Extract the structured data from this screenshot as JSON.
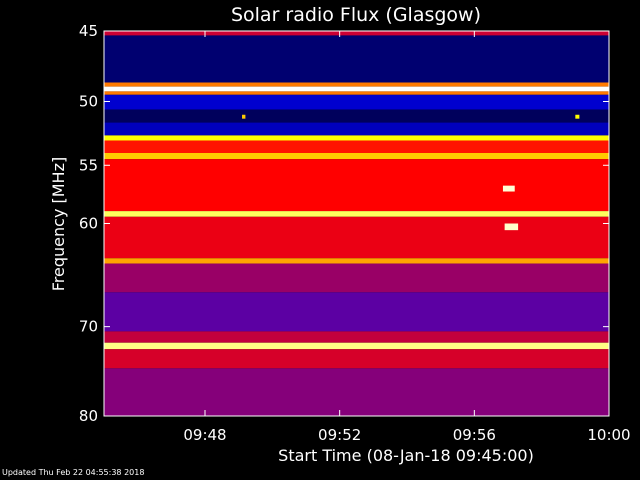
{
  "chart_data": {
    "type": "heatmap",
    "title": "Solar radio Flux (Glasgow)",
    "xlabel": "Start Time (08-Jan-18 09:45:00)",
    "ylabel": "Frequency [MHz]",
    "x_range_minutes": [
      0,
      15
    ],
    "x_ticks": [
      {
        "label": "09:48",
        "minute": 3
      },
      {
        "label": "09:52",
        "minute": 7
      },
      {
        "label": "09:56",
        "minute": 11
      },
      {
        "label": "10:00",
        "minute": 15
      }
    ],
    "ylim": [
      45,
      80
    ],
    "y_scale": "log",
    "y_direction": "inverted",
    "y_ticks": [
      45,
      50,
      55,
      60,
      70,
      80
    ],
    "colormap": [
      "#000010",
      "#0000ff",
      "#ff0000",
      "#ffff00",
      "#ffffff"
    ],
    "bands": [
      {
        "from": 45.0,
        "to": 45.3,
        "level": 0.45
      },
      {
        "from": 45.3,
        "to": 48.6,
        "level": 0.1
      },
      {
        "from": 48.6,
        "to": 48.9,
        "level": 0.62
      },
      {
        "from": 48.9,
        "to": 49.25,
        "level": 1.0
      },
      {
        "from": 49.25,
        "to": 49.5,
        "level": 0.62
      },
      {
        "from": 49.5,
        "to": 50.6,
        "level": 0.2
      },
      {
        "from": 50.6,
        "to": 51.6,
        "level": 0.08
      },
      {
        "from": 51.6,
        "to": 52.6,
        "level": 0.18
      },
      {
        "from": 52.6,
        "to": 53.0,
        "level": 0.75
      },
      {
        "from": 53.0,
        "to": 54.0,
        "level": 0.52
      },
      {
        "from": 54.0,
        "to": 54.5,
        "level": 0.7
      },
      {
        "from": 54.5,
        "to": 58.9,
        "level": 0.5
      },
      {
        "from": 58.9,
        "to": 59.4,
        "level": 0.84
      },
      {
        "from": 59.4,
        "to": 63.2,
        "level": 0.48
      },
      {
        "from": 63.2,
        "to": 63.7,
        "level": 0.66
      },
      {
        "from": 63.7,
        "to": 66.5,
        "level": 0.4
      },
      {
        "from": 66.5,
        "to": 70.5,
        "level": 0.34
      },
      {
        "from": 70.5,
        "to": 71.7,
        "level": 0.44
      },
      {
        "from": 71.7,
        "to": 72.4,
        "level": 0.88
      },
      {
        "from": 72.4,
        "to": 74.5,
        "level": 0.46
      },
      {
        "from": 74.5,
        "to": 80.0,
        "level": 0.38
      }
    ],
    "features": [
      {
        "name": "burst",
        "minute_from": 11.85,
        "minute_to": 12.2,
        "mhz_from": 56.7,
        "mhz_to": 57.2,
        "level": 0.96
      },
      {
        "name": "burst",
        "minute_from": 11.9,
        "minute_to": 12.3,
        "mhz_from": 60.0,
        "mhz_to": 60.6,
        "level": 0.95
      },
      {
        "name": "spot",
        "minute_from": 4.1,
        "minute_to": 4.2,
        "mhz_from": 51.0,
        "mhz_to": 51.3,
        "level": 0.7
      },
      {
        "name": "spot",
        "minute_from": 14.0,
        "minute_to": 14.12,
        "mhz_from": 51.0,
        "mhz_to": 51.3,
        "level": 0.75
      }
    ]
  },
  "footer": {
    "updated": "Updated Thu Feb 22 04:55:38 2018"
  }
}
